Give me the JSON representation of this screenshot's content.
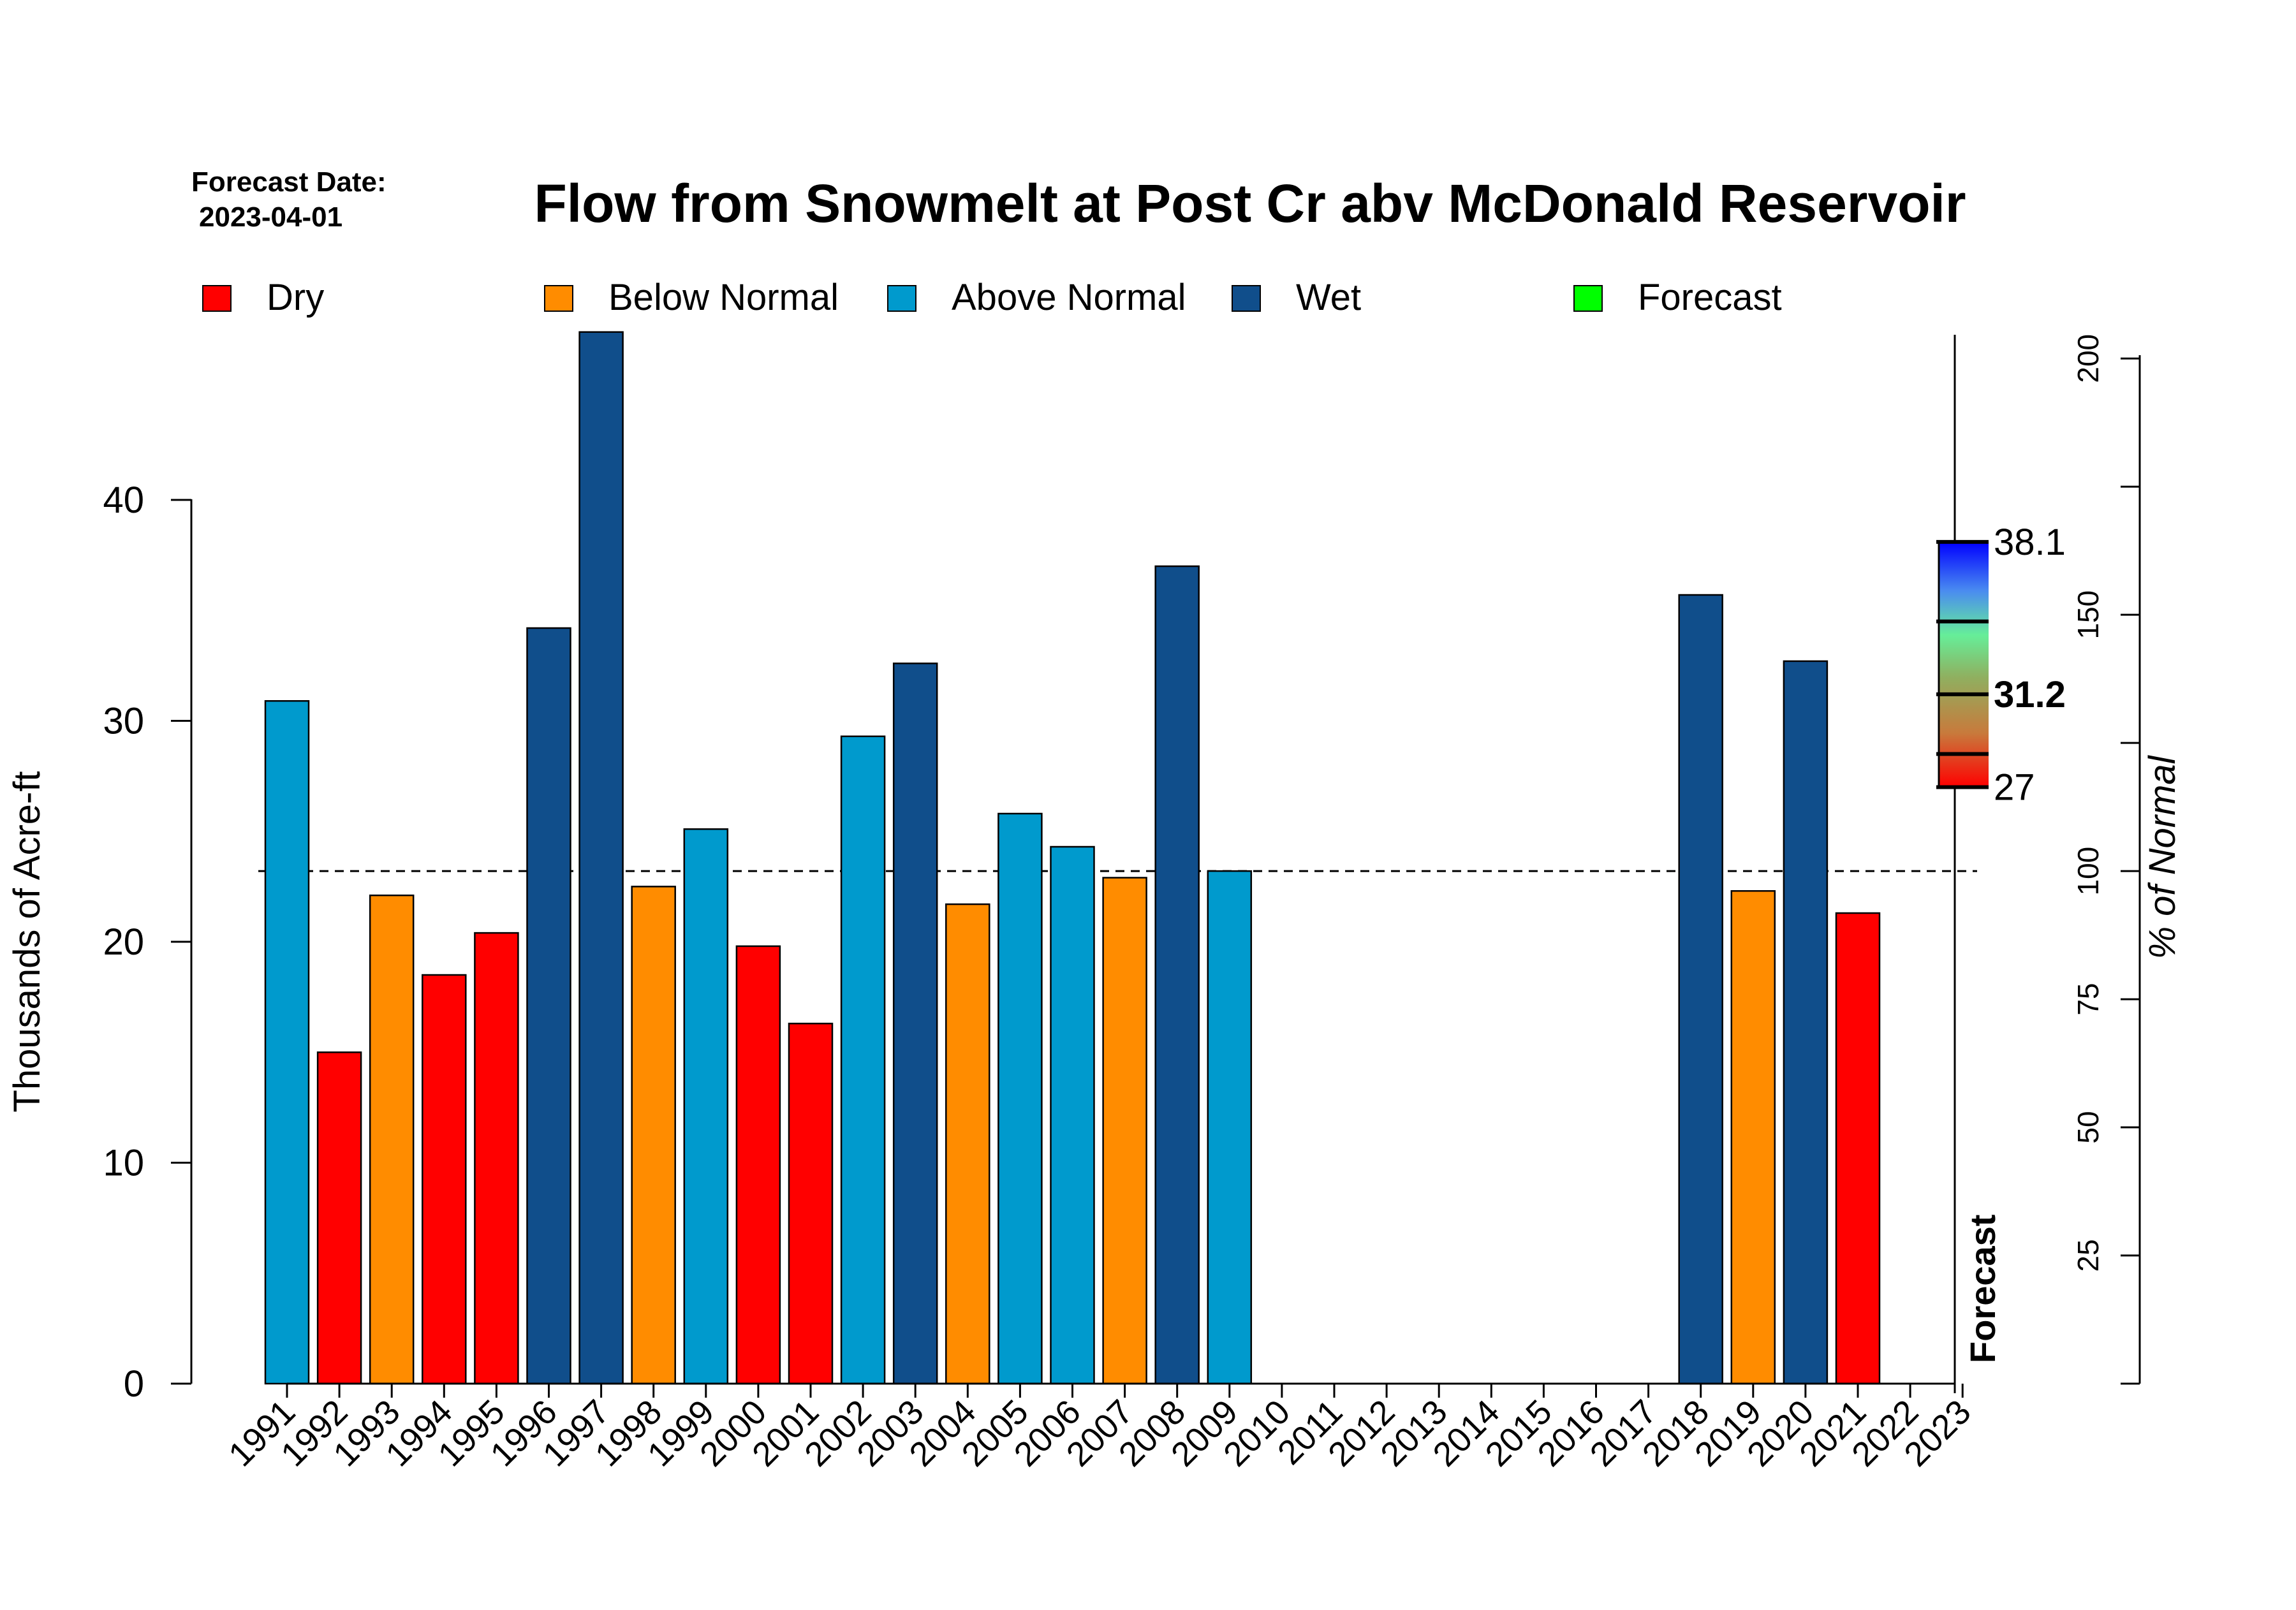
{
  "header": {
    "forecast_date_label": "Forecast Date:",
    "forecast_date": "2023-04-01",
    "title": "Flow from Snowmelt at Post Cr abv McDonald Reservoir"
  },
  "legend": [
    {
      "key": "dry",
      "label": "Dry",
      "color": "#ff0000"
    },
    {
      "key": "below",
      "label": "Below Normal",
      "color": "#ff8c00"
    },
    {
      "key": "above",
      "label": "Above Normal",
      "color": "#009acd"
    },
    {
      "key": "wet",
      "label": "Wet",
      "color": "#104e8b"
    },
    {
      "key": "forecast",
      "label": "Forecast",
      "color": "#00ff00"
    }
  ],
  "chart_data": {
    "type": "bar",
    "title": "Flow from Snowmelt at Post Cr abv McDonald Reservoir",
    "xlabel": "",
    "ylabel": "Thousands of Acre-ft",
    "ylim": [
      0,
      47.5
    ],
    "yticks": [
      0,
      10,
      20,
      30,
      40
    ],
    "categories": [
      "1991",
      "1992",
      "1993",
      "1994",
      "1995",
      "1996",
      "1997",
      "1998",
      "1999",
      "2000",
      "2001",
      "2002",
      "2003",
      "2004",
      "2005",
      "2006",
      "2007",
      "2008",
      "2009",
      "2010",
      "2011",
      "2012",
      "2013",
      "2014",
      "2015",
      "2016",
      "2017",
      "2018",
      "2019",
      "2020",
      "2021",
      "2022",
      "2023"
    ],
    "values": [
      30.9,
      15.0,
      22.1,
      18.5,
      20.4,
      34.2,
      47.6,
      22.5,
      25.1,
      19.8,
      16.3,
      29.3,
      32.6,
      21.7,
      25.8,
      24.3,
      22.9,
      37.0,
      23.2,
      null,
      null,
      null,
      null,
      null,
      null,
      null,
      null,
      35.7,
      22.3,
      32.7,
      21.3,
      null,
      null
    ],
    "classes": [
      "above",
      "dry",
      "below",
      "dry",
      "dry",
      "wet",
      "wet",
      "below",
      "above",
      "dry",
      "dry",
      "above",
      "wet",
      "below",
      "above",
      "above",
      "below",
      "wet",
      "above",
      null,
      null,
      null,
      null,
      null,
      null,
      null,
      null,
      "wet",
      "below",
      "wet",
      "dry",
      null,
      null
    ],
    "normal": 23.2,
    "right_axis": {
      "label": "% of Normal",
      "ticks": [
        25,
        50,
        75,
        100,
        150,
        200
      ],
      "minor_ticks": [
        125,
        175
      ]
    },
    "forecast": {
      "label": "Forecast",
      "low": 27,
      "median": 31.2,
      "high": 38.1,
      "low_label": "27",
      "median_label": "31.2",
      "high_label": "38.1",
      "bands": [
        28.5,
        34.5
      ]
    }
  }
}
